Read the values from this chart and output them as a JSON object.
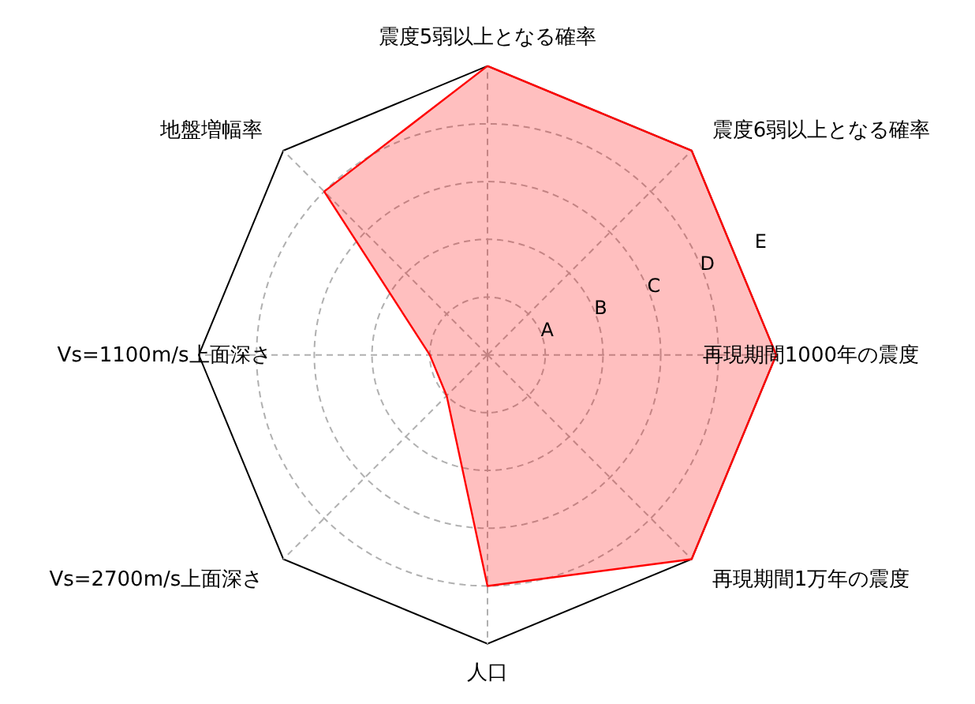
{
  "chart_data": {
    "type": "radar",
    "categories": [
      "震度5弱以上となる確率",
      "震度6弱以上となる確率",
      "再現期間1000年の震度",
      "再現期間1万年の震度",
      "人口",
      "Vs=2700m/s上面深さ",
      "Vs=1100m/s上面深さ",
      "地盤増幅率"
    ],
    "series": [
      {
        "color": "#ff0000",
        "values": [
          5,
          5,
          5,
          5,
          4,
          1,
          1,
          4
        ]
      }
    ],
    "ylim": [
      0,
      5
    ],
    "yticks": [
      {
        "value": 1,
        "label": "A"
      },
      {
        "value": 2,
        "label": "B"
      },
      {
        "value": 3,
        "label": "C"
      },
      {
        "value": 4,
        "label": "D"
      },
      {
        "value": 5,
        "label": "E"
      }
    ],
    "grid": true
  }
}
